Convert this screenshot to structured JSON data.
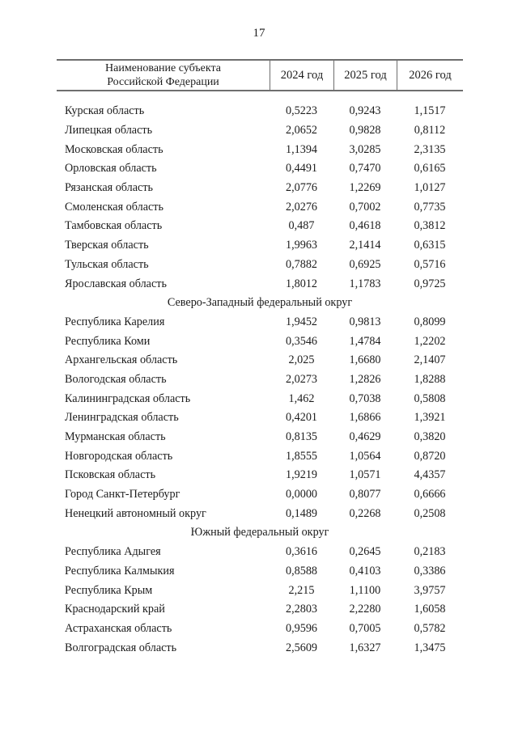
{
  "page": {
    "number": "17"
  },
  "colors": {
    "text": "#1c1c1c",
    "border": "#6e6e6e",
    "background": "#ffffff"
  },
  "table": {
    "header": {
      "name_column": [
        "Наименование субъекта",
        "Российской Федерации"
      ],
      "year_columns": [
        "2024 год",
        "2025 год",
        "2026 год"
      ]
    },
    "sections": [
      {
        "title": "",
        "rows": [
          {
            "name": "Курская область",
            "values": [
              "0,5223",
              "0,9243",
              "1,1517"
            ]
          },
          {
            "name": "Липецкая область",
            "values": [
              "2,0652",
              "0,9828",
              "0,8112"
            ]
          },
          {
            "name": "Московская область",
            "values": [
              "1,1394",
              "3,0285",
              "2,3135"
            ]
          },
          {
            "name": "Орловская область",
            "values": [
              "0,4491",
              "0,7470",
              "0,6165"
            ]
          },
          {
            "name": "Рязанская область",
            "values": [
              "2,0776",
              "1,2269",
              "1,0127"
            ]
          },
          {
            "name": "Смоленская область",
            "values": [
              "2,0276",
              "0,7002",
              "0,7735"
            ]
          },
          {
            "name": "Тамбовская область",
            "values": [
              "0,487",
              "0,4618",
              "0,3812"
            ]
          },
          {
            "name": "Тверская область",
            "values": [
              "1,9963",
              "2,1414",
              "0,6315"
            ]
          },
          {
            "name": "Тульская область",
            "values": [
              "0,7882",
              "0,6925",
              "0,5716"
            ]
          },
          {
            "name": "Ярославская область",
            "values": [
              "1,8012",
              "1,1783",
              "0,9725"
            ]
          }
        ]
      },
      {
        "title": "Северо-Западный федеральный округ",
        "rows": [
          {
            "name": "Республика Карелия",
            "values": [
              "1,9452",
              "0,9813",
              "0,8099"
            ]
          },
          {
            "name": "Республика Коми",
            "values": [
              "0,3546",
              "1,4784",
              "1,2202"
            ]
          },
          {
            "name": "Архангельская область",
            "values": [
              "2,025",
              "1,6680",
              "2,1407"
            ]
          },
          {
            "name": "Вологодская область",
            "values": [
              "2,0273",
              "1,2826",
              "1,8288"
            ]
          },
          {
            "name": "Калининградская область",
            "values": [
              "1,462",
              "0,7038",
              "0,5808"
            ]
          },
          {
            "name": "Ленинградская область",
            "values": [
              "0,4201",
              "1,6866",
              "1,3921"
            ]
          },
          {
            "name": "Мурманская область",
            "values": [
              "0,8135",
              "0,4629",
              "0,3820"
            ]
          },
          {
            "name": "Новгородская область",
            "values": [
              "1,8555",
              "1,0564",
              "0,8720"
            ]
          },
          {
            "name": "Псковская область",
            "values": [
              "1,9219",
              "1,0571",
              "4,4357"
            ]
          },
          {
            "name": "Город Санкт-Петербург",
            "values": [
              "0,0000",
              "0,8077",
              "0,6666"
            ]
          },
          {
            "name": "Ненецкий автономный округ",
            "values": [
              "0,1489",
              "0,2268",
              "0,2508"
            ]
          }
        ]
      },
      {
        "title": "Южный федеральный округ",
        "rows": [
          {
            "name": "Республика Адыгея",
            "values": [
              "0,3616",
              "0,2645",
              "0,2183"
            ]
          },
          {
            "name": "Республика Калмыкия",
            "values": [
              "0,8588",
              "0,4103",
              "0,3386"
            ]
          },
          {
            "name": "Республика Крым",
            "values": [
              "2,215",
              "1,1100",
              "3,9757"
            ]
          },
          {
            "name": "Краснодарский край",
            "values": [
              "2,2803",
              "2,2280",
              "1,6058"
            ]
          },
          {
            "name": "Астраханская область",
            "values": [
              "0,9596",
              "0,7005",
              "0,5782"
            ]
          },
          {
            "name": "Волгоградская область",
            "values": [
              "2,5609",
              "1,6327",
              "1,3475"
            ]
          }
        ]
      }
    ]
  }
}
